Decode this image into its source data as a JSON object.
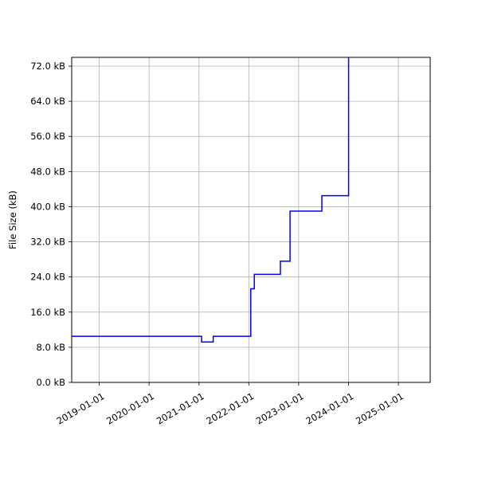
{
  "chart_data": {
    "type": "line",
    "title": "",
    "xlabel": "",
    "ylabel": "File Size (kB)",
    "xlim": [
      "2018-06-13",
      "2025-08-22"
    ],
    "ylim": [
      0,
      74
    ],
    "grid": true,
    "x_ticks": [
      "2019-01-01",
      "2020-01-01",
      "2021-01-01",
      "2022-01-01",
      "2023-01-01",
      "2024-01-01",
      "2025-01-01"
    ],
    "y_ticks": [
      0,
      8,
      16,
      24,
      32,
      40,
      48,
      56,
      64,
      72
    ],
    "y_tick_labels": [
      "0.0 kB",
      "8.0 kB",
      "16.0 kB",
      "24.0 kB",
      "32.0 kB",
      "40.0 kB",
      "48.0 kB",
      "56.0 kB",
      "64.0 kB",
      "72.0 kB"
    ],
    "series": [
      {
        "color": "#0000ff",
        "step": "post",
        "points": [
          {
            "x": "2018-06-13",
            "y": 10.5
          },
          {
            "x": "2021-01-20",
            "y": 9.2
          },
          {
            "x": "2021-04-15",
            "y": 10.5
          },
          {
            "x": "2022-01-15",
            "y": 21.3
          },
          {
            "x": "2022-02-10",
            "y": 24.6
          },
          {
            "x": "2022-08-20",
            "y": 27.6
          },
          {
            "x": "2022-10-30",
            "y": 39.0
          },
          {
            "x": "2023-06-20",
            "y": 42.5
          },
          {
            "x": "2024-01-02",
            "y": 74.0
          }
        ]
      }
    ]
  }
}
